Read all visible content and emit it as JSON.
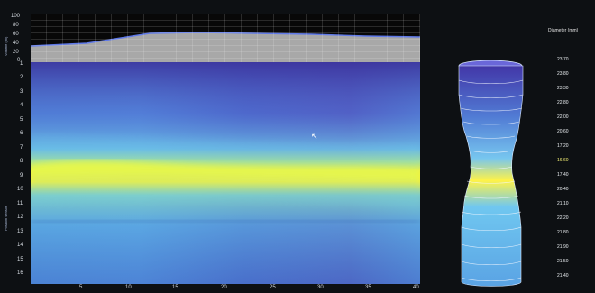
{
  "top_chart": {
    "y_ticks": [
      "100",
      "80",
      "60",
      "40",
      "20",
      "0"
    ],
    "y_label": "Volume (ml)"
  },
  "heatmap": {
    "y_ticks": [
      "1",
      "2",
      "3",
      "4",
      "5",
      "6",
      "7",
      "8",
      "9",
      "10",
      "11",
      "12",
      "13",
      "14",
      "15",
      "16"
    ],
    "y_label": "Position sensor",
    "x_ticks": [
      "5",
      "10",
      "15",
      "20",
      "25",
      "30",
      "35",
      "40"
    ]
  },
  "diameter_scale": {
    "title": "Diameter (mm)",
    "ticks": [
      "23.70",
      "23.80",
      "23.30",
      "22.80",
      "22.00",
      "20.60",
      "17.20",
      "16.60",
      "17.40",
      "20.40",
      "21.10",
      "22.20",
      "21.80",
      "21.90",
      "21.50",
      "21.40"
    ]
  },
  "colors": {
    "background": "#0d1013",
    "heatmap_low": "#3d2e9b",
    "heatmap_mid": "#59b6e9",
    "heatmap_high": "#f3f23b"
  }
}
